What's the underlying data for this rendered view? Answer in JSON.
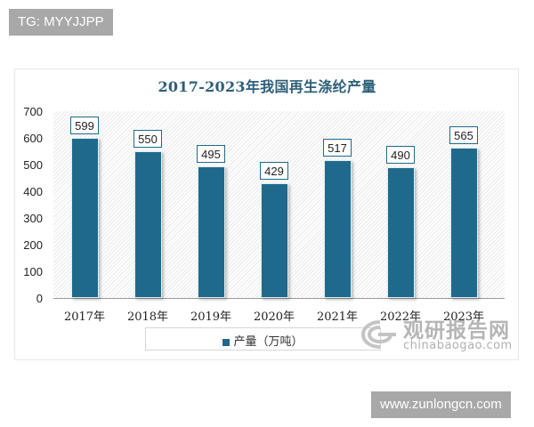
{
  "overlay": {
    "top_left_tag": "TG: MYYJJPP",
    "bottom_right_tag": "www.zunlongcn.com"
  },
  "watermark": {
    "cn": "观研报告网",
    "en": "chinabaogao.com"
  },
  "colors": {
    "bar": "#1f6a8c",
    "title": "#2e5f78"
  },
  "chart_data": {
    "type": "bar",
    "title": "2017-2023年我国再生涤纶产量",
    "categories": [
      "2017年",
      "2018年",
      "2019年",
      "2020年",
      "2021年",
      "2022年",
      "2023年"
    ],
    "series": [
      {
        "name": "产量（万吨）",
        "values": [
          599,
          550,
          495,
          429,
          517,
          490,
          565
        ]
      }
    ],
    "values": [
      599,
      550,
      495,
      429,
      517,
      490,
      565
    ],
    "xlabel": "",
    "ylabel": "",
    "ylim": [
      0,
      700
    ],
    "yticks": [
      "0",
      "100",
      "200",
      "300",
      "400",
      "500",
      "600",
      "700"
    ],
    "grid": false,
    "legend_position": "bottom",
    "data_labels": [
      "599",
      "550",
      "495",
      "429",
      "517",
      "490",
      "565"
    ]
  }
}
